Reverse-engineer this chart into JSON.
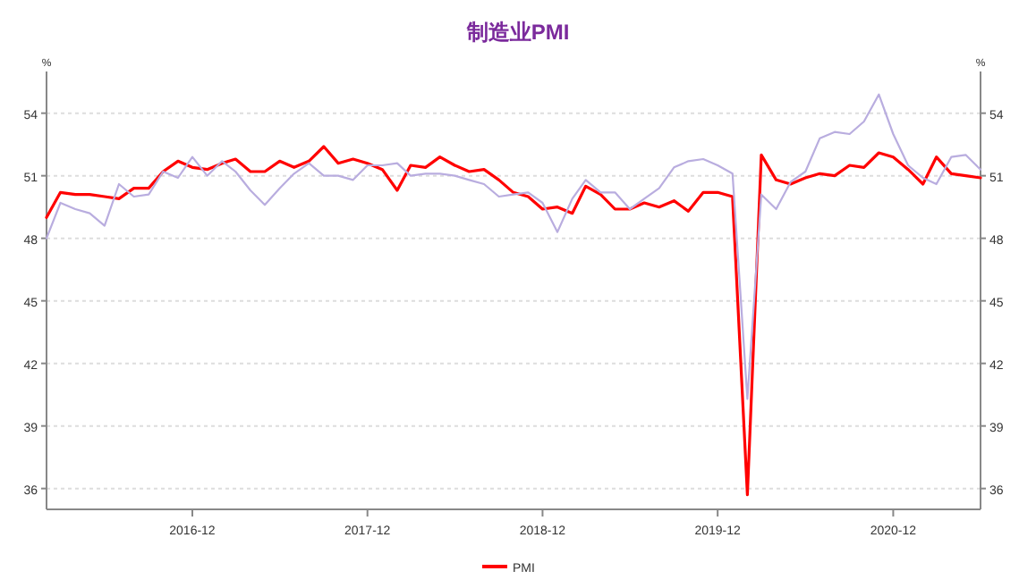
{
  "chart_data": {
    "type": "line",
    "title": "制造业PMI",
    "ylabel": "%",
    "y2label": "%",
    "x": [
      "2016-02",
      "2016-03",
      "2016-04",
      "2016-05",
      "2016-06",
      "2016-07",
      "2016-08",
      "2016-09",
      "2016-10",
      "2016-11",
      "2016-12",
      "2017-01",
      "2017-02",
      "2017-03",
      "2017-04",
      "2017-05",
      "2017-06",
      "2017-07",
      "2017-08",
      "2017-09",
      "2017-10",
      "2017-11",
      "2017-12",
      "2018-01",
      "2018-02",
      "2018-03",
      "2018-04",
      "2018-05",
      "2018-06",
      "2018-07",
      "2018-08",
      "2018-09",
      "2018-10",
      "2018-11",
      "2018-12",
      "2019-01",
      "2019-02",
      "2019-03",
      "2019-04",
      "2019-05",
      "2019-06",
      "2019-07",
      "2019-08",
      "2019-09",
      "2019-10",
      "2019-11",
      "2019-12",
      "2020-01",
      "2020-02",
      "2020-03",
      "2020-04",
      "2020-05",
      "2020-06",
      "2020-07",
      "2020-08",
      "2020-09",
      "2020-10",
      "2020-11",
      "2020-12",
      "2021-01",
      "2021-02",
      "2021-03",
      "2021-04",
      "2021-05",
      "2021-06"
    ],
    "series": [
      {
        "name": "PMI",
        "color": "#ff0000",
        "values": [
          49.0,
          50.2,
          50.1,
          50.1,
          50.0,
          49.9,
          50.4,
          50.4,
          51.2,
          51.7,
          51.4,
          51.3,
          51.6,
          51.8,
          51.2,
          51.2,
          51.7,
          51.4,
          51.7,
          52.4,
          51.6,
          51.8,
          51.6,
          51.3,
          50.3,
          51.5,
          51.4,
          51.9,
          51.5,
          51.2,
          51.3,
          50.8,
          50.2,
          50.0,
          49.4,
          49.5,
          49.2,
          50.5,
          50.1,
          49.4,
          49.4,
          49.7,
          49.5,
          49.8,
          49.3,
          50.2,
          50.2,
          50.0,
          35.7,
          52.0,
          50.8,
          50.6,
          50.9,
          51.1,
          51.0,
          51.5,
          51.4,
          52.1,
          51.9,
          51.3,
          50.6,
          51.9,
          51.1,
          51.0,
          50.9
        ]
      },
      {
        "color": "#b9addf",
        "values": [
          48.0,
          49.7,
          49.4,
          49.2,
          48.6,
          50.6,
          50.0,
          50.1,
          51.2,
          50.9,
          51.9,
          51.0,
          51.7,
          51.2,
          50.3,
          49.6,
          50.4,
          51.1,
          51.6,
          51.0,
          51.0,
          50.8,
          51.5,
          51.5,
          51.6,
          51.0,
          51.1,
          51.1,
          51.0,
          50.8,
          50.6,
          50.0,
          50.1,
          50.2,
          49.7,
          48.3,
          49.9,
          50.8,
          50.2,
          50.2,
          49.4,
          49.9,
          50.4,
          51.4,
          51.7,
          51.8,
          51.5,
          51.1,
          40.3,
          50.1,
          49.4,
          50.7,
          51.2,
          52.8,
          53.1,
          53.0,
          53.6,
          54.9,
          53.0,
          51.5,
          50.9,
          50.6,
          51.9,
          52.0,
          51.3
        ]
      }
    ],
    "xlim": [
      "2016-02",
      "2021-06"
    ],
    "xticks": [
      "2016-12",
      "2017-12",
      "2018-12",
      "2019-12",
      "2020-12"
    ],
    "ylim": [
      35,
      56
    ],
    "yticks": [
      36,
      39,
      42,
      45,
      48,
      51,
      54
    ],
    "y2lim": [
      35,
      56
    ],
    "y2ticks": [
      36,
      39,
      42,
      45,
      48,
      51,
      54
    ],
    "grid": "y",
    "legend": "bottom",
    "line_style": "solid"
  }
}
